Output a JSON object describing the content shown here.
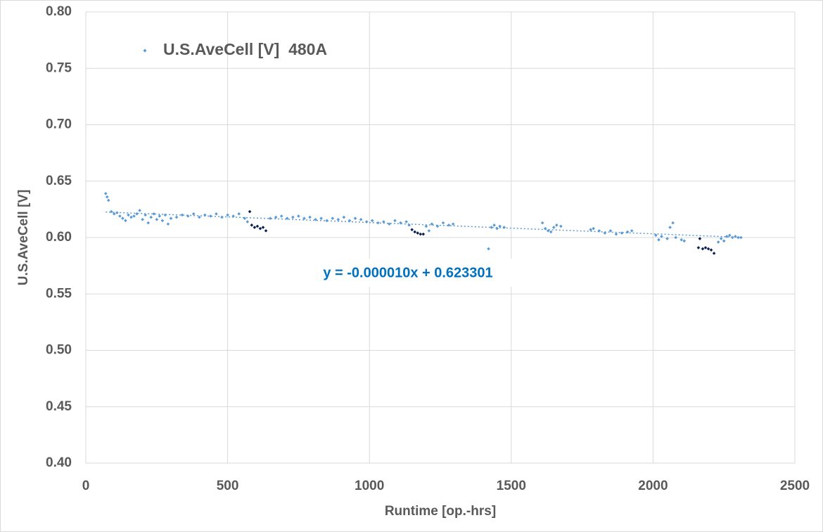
{
  "chart_data": {
    "type": "scatter",
    "x_label": "Runtime [op.-hrs]",
    "y_label": "U.S.AveCell [V]",
    "xlim": [
      0,
      2500
    ],
    "xticks": [
      0,
      500,
      1000,
      1500,
      2000,
      2500
    ],
    "ylim": [
      0.4,
      0.8
    ],
    "yticks": [
      {
        "value": 0.4,
        "label": "0.40"
      },
      {
        "value": 0.45,
        "label": "0.45"
      },
      {
        "value": 0.5,
        "label": "0.50"
      },
      {
        "value": 0.55,
        "label": "0.55"
      },
      {
        "value": 0.6,
        "label": "0.60"
      },
      {
        "value": 0.65,
        "label": "0.65"
      },
      {
        "value": 0.7,
        "label": "0.70"
      },
      {
        "value": 0.75,
        "label": "0.75"
      },
      {
        "value": 0.8,
        "label": "0.80"
      }
    ],
    "grid": true,
    "legend": "top-left",
    "series": [
      {
        "name": "U.S.AveCell [V]  480A",
        "color": "#5b9bd5",
        "x": [
          70,
          75,
          80,
          90,
          100,
          110,
          120,
          130,
          140,
          150,
          160,
          170,
          180,
          190,
          200,
          210,
          220,
          230,
          240,
          250,
          260,
          270,
          280,
          290,
          300,
          320,
          340,
          360,
          380,
          400,
          420,
          440,
          460,
          480,
          500,
          520,
          540,
          560,
          570,
          650,
          670,
          690,
          710,
          730,
          750,
          770,
          790,
          810,
          830,
          850,
          870,
          890,
          910,
          930,
          950,
          970,
          990,
          1010,
          1030,
          1050,
          1070,
          1090,
          1110,
          1130,
          1140,
          1200,
          1210,
          1220,
          1240,
          1260,
          1280,
          1295,
          1420,
          1430,
          1440,
          1450,
          1460,
          1475,
          1610,
          1620,
          1630,
          1640,
          1650,
          1660,
          1675,
          1780,
          1790,
          1810,
          1830,
          1850,
          1870,
          1890,
          1910,
          1925,
          2010,
          2020,
          2030,
          2050,
          2060,
          2070,
          2080,
          2100,
          2110,
          2230,
          2240,
          2250,
          2260,
          2270,
          2280,
          2290,
          2300,
          2310
        ],
        "y": [
          0.639,
          0.636,
          0.633,
          0.623,
          0.621,
          0.622,
          0.619,
          0.617,
          0.615,
          0.62,
          0.618,
          0.619,
          0.621,
          0.624,
          0.616,
          0.62,
          0.613,
          0.618,
          0.621,
          0.616,
          0.619,
          0.615,
          0.62,
          0.612,
          0.617,
          0.618,
          0.62,
          0.619,
          0.621,
          0.618,
          0.62,
          0.619,
          0.621,
          0.618,
          0.62,
          0.619,
          0.621,
          0.617,
          0.614,
          0.617,
          0.618,
          0.619,
          0.617,
          0.618,
          0.619,
          0.617,
          0.618,
          0.616,
          0.617,
          0.615,
          0.617,
          0.616,
          0.618,
          0.615,
          0.617,
          0.616,
          0.614,
          0.615,
          0.613,
          0.614,
          0.612,
          0.615,
          0.613,
          0.614,
          0.611,
          0.61,
          0.606,
          0.612,
          0.61,
          0.613,
          0.611,
          0.612,
          0.59,
          0.609,
          0.611,
          0.608,
          0.61,
          0.609,
          0.613,
          0.608,
          0.606,
          0.605,
          0.609,
          0.611,
          0.61,
          0.607,
          0.608,
          0.606,
          0.604,
          0.606,
          0.603,
          0.604,
          0.605,
          0.606,
          0.602,
          0.598,
          0.601,
          0.599,
          0.609,
          0.613,
          0.6,
          0.598,
          0.597,
          0.596,
          0.599,
          0.597,
          0.601,
          0.602,
          0.6,
          0.601,
          0.6,
          0.6
        ]
      },
      {
        "color": "#0b1f4f",
        "x": [
          578,
          585,
          595,
          605,
          615,
          625,
          635,
          1150,
          1160,
          1170,
          1180,
          1190,
          2160,
          2165,
          2175,
          2185,
          2195,
          2205,
          2215
        ],
        "y": [
          0.623,
          0.611,
          0.609,
          0.61,
          0.608,
          0.609,
          0.606,
          0.607,
          0.605,
          0.604,
          0.603,
          0.603,
          0.591,
          0.599,
          0.59,
          0.591,
          0.59,
          0.589,
          0.586
        ]
      }
    ],
    "trendline": {
      "label": "y = -0.000010x + 0.623301",
      "color": "#5b9bd5",
      "label_color": "#0070c0",
      "x": [
        70,
        2310
      ],
      "y": [
        0.6226,
        0.6002
      ]
    }
  }
}
